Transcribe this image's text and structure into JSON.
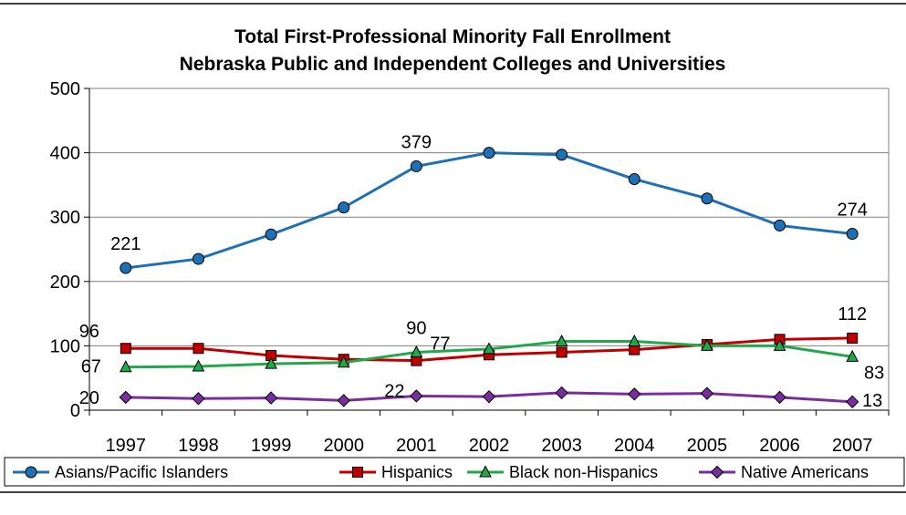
{
  "chart_data": {
    "type": "line",
    "title": [
      "Total First-Professional Minority Fall Enrollment",
      "Nebraska Public and Independent Colleges and Universities"
    ],
    "categories": [
      "1997",
      "1998",
      "1999",
      "2000",
      "2001",
      "2002",
      "2003",
      "2004",
      "2005",
      "2006",
      "2007"
    ],
    "ylim": [
      0,
      500
    ],
    "yticks": [
      "0",
      "100",
      "200",
      "300",
      "400",
      "500"
    ],
    "grid": "horizontal",
    "legend_position": "bottom",
    "series": [
      {
        "name": "Asians/Pacific Islanders",
        "color": "#1f6fb5",
        "marker": "circle",
        "values": [
          221,
          235,
          273,
          315,
          379,
          400,
          397,
          359,
          329,
          287,
          274
        ],
        "labels": [
          {
            "index": 0,
            "text": "221"
          },
          {
            "index": 4,
            "text": "379"
          },
          {
            "index": 10,
            "text": "274"
          }
        ]
      },
      {
        "name": "Hispanics",
        "color": "#c00000",
        "marker": "square",
        "values": [
          96,
          96,
          85,
          79,
          77,
          86,
          90,
          94,
          102,
          110,
          112
        ],
        "labels": [
          {
            "index": 0,
            "text": "96"
          },
          {
            "index": 4,
            "text": "77"
          },
          {
            "index": 10,
            "text": "112"
          }
        ]
      },
      {
        "name": "Black non-Hispanics",
        "color": "#22a84a",
        "marker": "triangle",
        "values": [
          67,
          68,
          72,
          74,
          90,
          95,
          107,
          107,
          100,
          100,
          83
        ],
        "labels": [
          {
            "index": 0,
            "text": "67"
          },
          {
            "index": 4,
            "text": "90"
          },
          {
            "index": 10,
            "text": "83"
          }
        ]
      },
      {
        "name": "Native Americans",
        "color": "#7a2e9e",
        "marker": "diamond",
        "values": [
          20,
          18,
          19,
          15,
          22,
          21,
          27,
          25,
          26,
          20,
          13
        ],
        "labels": [
          {
            "index": 0,
            "text": "20"
          },
          {
            "index": 4,
            "text": "22"
          },
          {
            "index": 10,
            "text": "13"
          }
        ]
      }
    ]
  }
}
